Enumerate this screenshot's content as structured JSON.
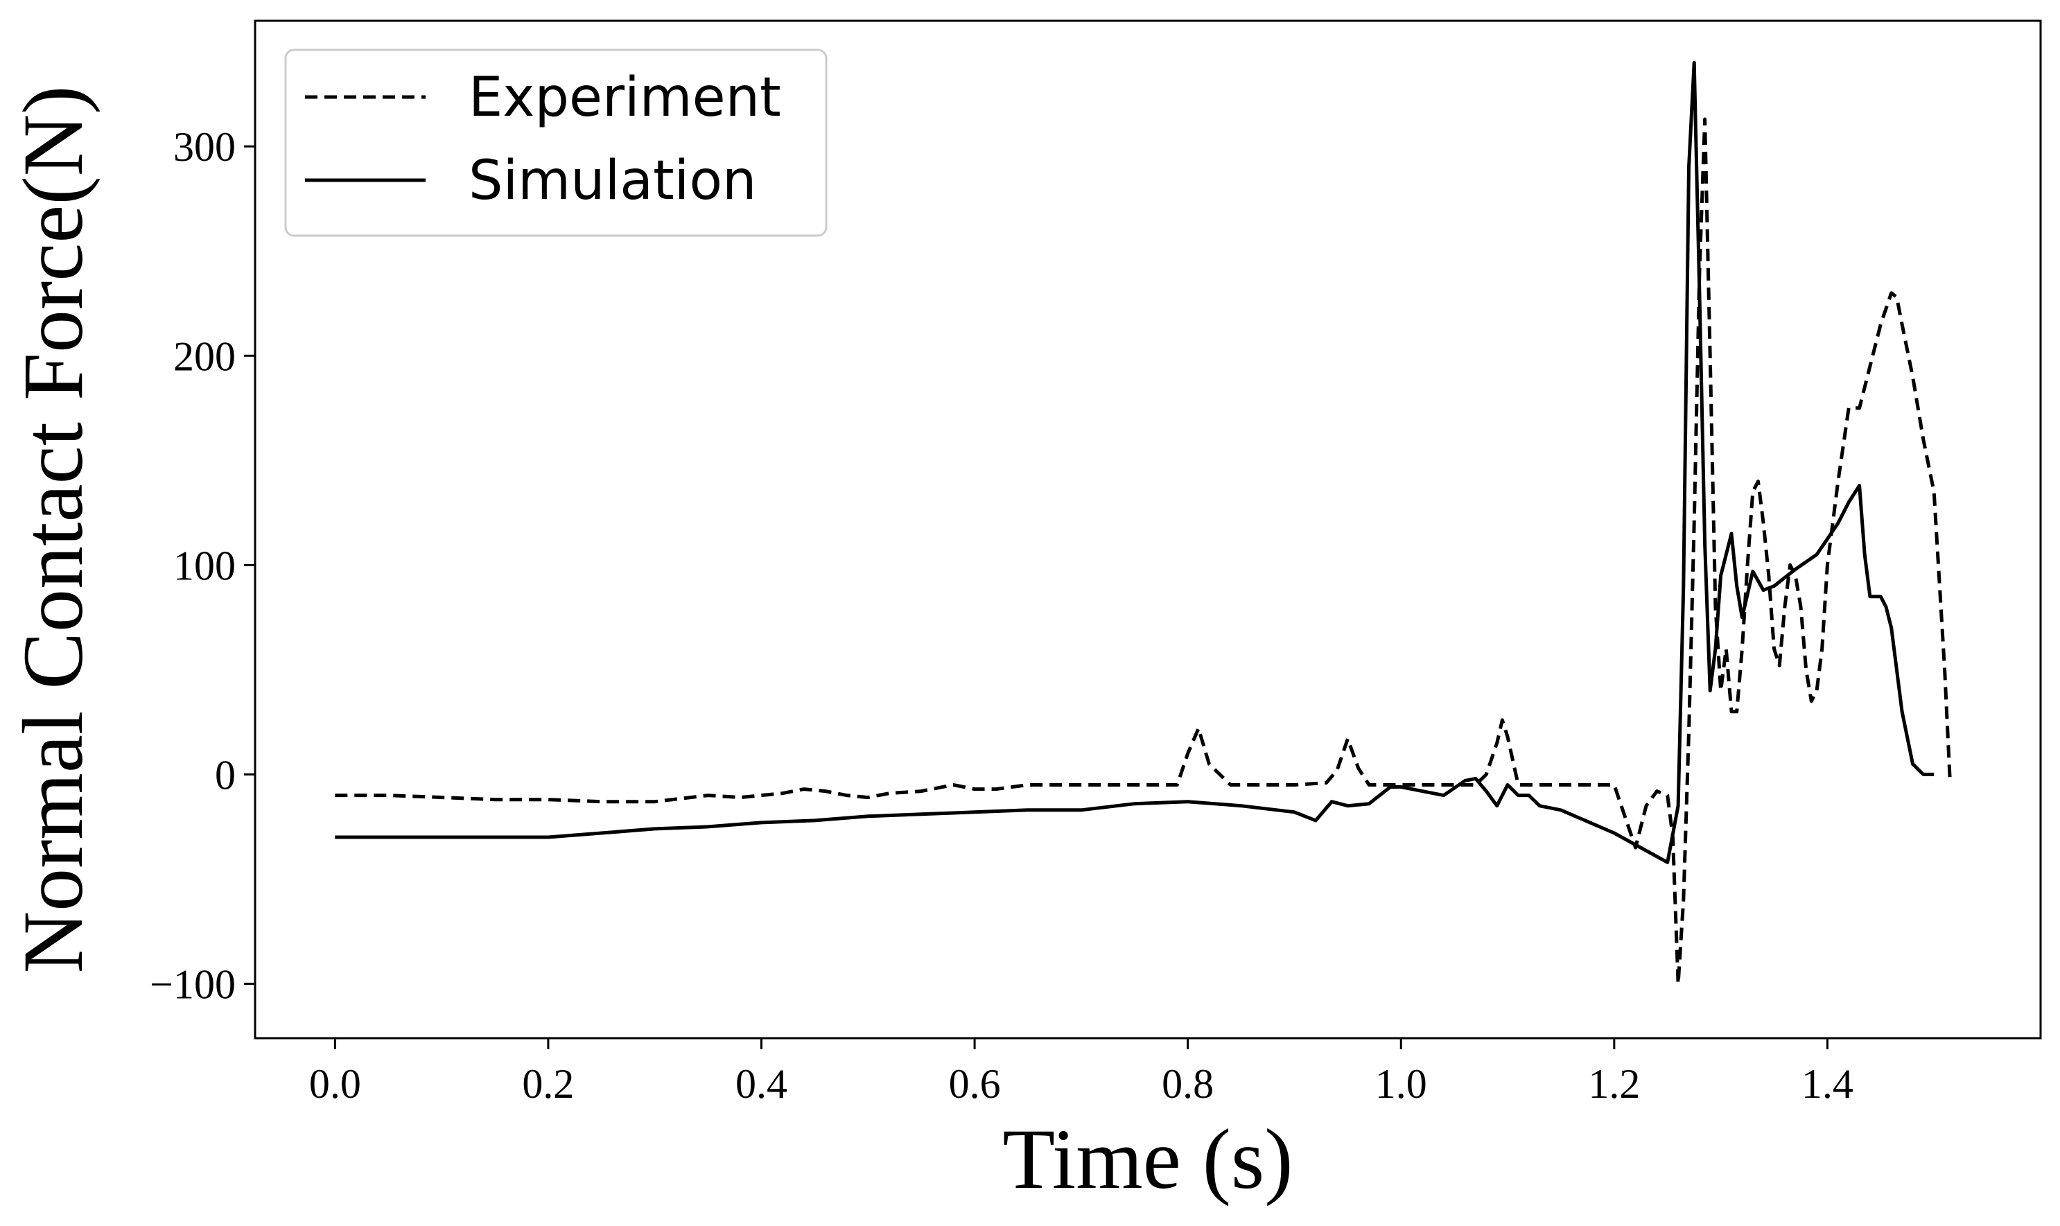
{
  "chart_data": {
    "type": "line",
    "xlabel": "Time (s)",
    "ylabel": "Normal Contact Force(N)",
    "xlim": [
      -0.075,
      1.6
    ],
    "ylim": [
      -126,
      360
    ],
    "xticks": [
      0.0,
      0.2,
      0.4,
      0.6,
      0.8,
      1.0,
      1.2,
      1.4
    ],
    "xtick_labels": [
      "0.0",
      "0.2",
      "0.4",
      "0.6",
      "0.8",
      "1.0",
      "1.2",
      "1.4"
    ],
    "yticks": [
      -100,
      0,
      100,
      200,
      300
    ],
    "ytick_labels": [
      "−100",
      "0",
      "100",
      "200",
      "300"
    ],
    "grid": false,
    "legend": {
      "placement": "top-left"
    },
    "series": [
      {
        "name": "Experiment",
        "style": "dashed",
        "color": "#000000",
        "x": [
          0.0,
          0.05,
          0.1,
          0.15,
          0.2,
          0.25,
          0.3,
          0.35,
          0.38,
          0.42,
          0.44,
          0.46,
          0.48,
          0.5,
          0.52,
          0.55,
          0.58,
          0.6,
          0.62,
          0.65,
          0.7,
          0.75,
          0.79,
          0.8,
          0.81,
          0.82,
          0.84,
          0.86,
          0.9,
          0.93,
          0.94,
          0.95,
          0.96,
          0.97,
          1.0,
          1.05,
          1.07,
          1.08,
          1.09,
          1.095,
          1.1,
          1.11,
          1.12,
          1.15,
          1.2,
          1.21,
          1.22,
          1.23,
          1.24,
          1.25,
          1.255,
          1.26,
          1.265,
          1.27,
          1.275,
          1.28,
          1.285,
          1.29,
          1.295,
          1.3,
          1.305,
          1.31,
          1.315,
          1.32,
          1.325,
          1.33,
          1.335,
          1.34,
          1.345,
          1.35,
          1.355,
          1.36,
          1.365,
          1.37,
          1.375,
          1.38,
          1.385,
          1.39,
          1.395,
          1.4,
          1.41,
          1.42,
          1.43,
          1.44,
          1.45,
          1.46,
          1.465,
          1.47,
          1.48,
          1.49,
          1.5,
          1.51,
          1.515
        ],
        "y": [
          -10,
          -10,
          -11,
          -12,
          -12,
          -13,
          -13,
          -10,
          -11,
          -9,
          -7,
          -8,
          -10,
          -11,
          -9,
          -8,
          -5,
          -7,
          -7,
          -5,
          -5,
          -5,
          -5,
          10,
          22,
          5,
          -5,
          -5,
          -5,
          -4,
          2,
          17,
          3,
          -5,
          -5,
          -5,
          -5,
          0,
          15,
          26,
          18,
          -5,
          -5,
          -5,
          -5,
          -20,
          -35,
          -15,
          -8,
          -10,
          -30,
          -100,
          -60,
          20,
          120,
          240,
          313,
          200,
          80,
          40,
          60,
          30,
          30,
          60,
          100,
          135,
          140,
          120,
          95,
          60,
          52,
          80,
          100,
          95,
          80,
          50,
          35,
          40,
          60,
          100,
          140,
          175,
          175,
          195,
          215,
          230,
          228,
          215,
          190,
          160,
          135,
          50,
          -3
        ]
      },
      {
        "name": "Simulation",
        "style": "solid",
        "color": "#000000",
        "x": [
          0.0,
          0.05,
          0.1,
          0.15,
          0.2,
          0.25,
          0.3,
          0.35,
          0.4,
          0.45,
          0.5,
          0.55,
          0.6,
          0.65,
          0.7,
          0.75,
          0.8,
          0.85,
          0.9,
          0.92,
          0.935,
          0.95,
          0.97,
          0.99,
          1.0,
          1.02,
          1.04,
          1.06,
          1.07,
          1.08,
          1.09,
          1.1,
          1.11,
          1.12,
          1.13,
          1.15,
          1.2,
          1.25,
          1.26,
          1.265,
          1.27,
          1.275,
          1.28,
          1.285,
          1.29,
          1.295,
          1.3,
          1.31,
          1.315,
          1.32,
          1.33,
          1.34,
          1.35,
          1.37,
          1.39,
          1.41,
          1.42,
          1.43,
          1.435,
          1.44,
          1.45,
          1.455,
          1.46,
          1.47,
          1.48,
          1.49,
          1.5
        ],
        "y": [
          -30,
          -30,
          -30,
          -30,
          -30,
          -28,
          -26,
          -25,
          -23,
          -22,
          -20,
          -19,
          -18,
          -17,
          -17,
          -14,
          -13,
          -15,
          -18,
          -22,
          -13,
          -15,
          -14,
          -6,
          -6,
          -8,
          -10,
          -3,
          -2,
          -8,
          -15,
          -5,
          -10,
          -10,
          -15,
          -17,
          -28,
          -42,
          -15,
          90,
          290,
          340,
          230,
          110,
          40,
          60,
          95,
          115,
          90,
          75,
          97,
          88,
          90,
          98,
          105,
          120,
          130,
          138,
          105,
          85,
          85,
          80,
          70,
          30,
          5,
          0,
          0
        ]
      }
    ]
  }
}
